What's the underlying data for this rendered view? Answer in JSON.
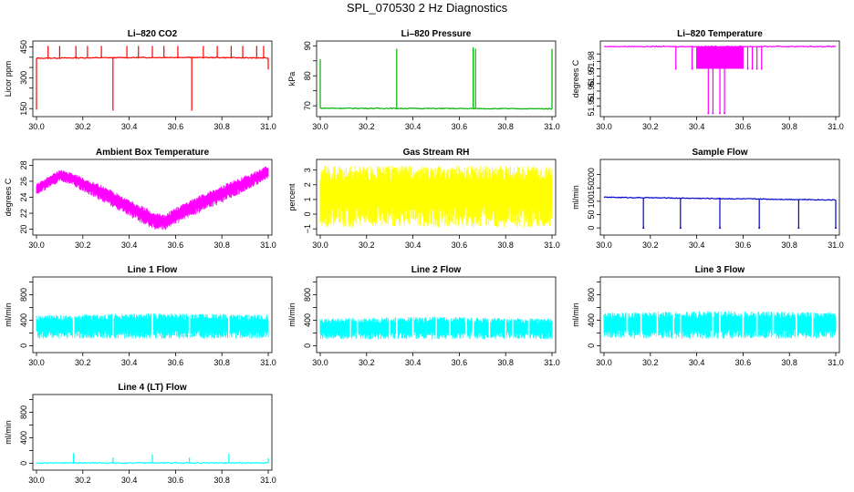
{
  "page_title": "SPL_070530  2 Hz Diagnostics",
  "chart_data": [
    {
      "type": "line",
      "title": "Li–820 CO2",
      "xlabel": "",
      "ylabel": "Licor ppm",
      "xlim": [
        30.0,
        31.0
      ],
      "ylim": [
        120,
        470
      ],
      "xticks": [
        30.0,
        30.2,
        30.4,
        30.6,
        30.8,
        31.0
      ],
      "xtick_labels": [
        "30.0",
        "30.2",
        "30.4",
        "30.6",
        "30.8",
        "31.0"
      ],
      "yticks": [
        150,
        300,
        450
      ],
      "ytick_labels": [
        "150",
        "300",
        "450"
      ],
      "ytick_minor": [
        200,
        250,
        350,
        400
      ],
      "color": "#ff0000",
      "series": [
        {
          "baseline": [
            [
              30.0,
              395
            ],
            [
              30.2,
              397
            ],
            [
              30.4,
              398
            ],
            [
              30.6,
              399
            ],
            [
              30.8,
              398
            ],
            [
              31.0,
              396
            ]
          ],
          "spikes": [
            [
              30.0,
              145
            ],
            [
              30.05,
              455
            ],
            [
              30.1,
              455
            ],
            [
              30.17,
              455
            ],
            [
              30.22,
              455
            ],
            [
              30.28,
              455
            ],
            [
              30.33,
              140
            ],
            [
              30.39,
              455
            ],
            [
              30.44,
              455
            ],
            [
              30.5,
              455
            ],
            [
              30.55,
              455
            ],
            [
              30.61,
              455
            ],
            [
              30.67,
              140
            ],
            [
              30.72,
              455
            ],
            [
              30.78,
              455
            ],
            [
              30.84,
              455
            ],
            [
              30.89,
              455
            ],
            [
              30.95,
              455
            ],
            [
              30.98,
              455
            ],
            [
              31.0,
              340
            ]
          ]
        }
      ]
    },
    {
      "type": "line",
      "title": "Li–820 Pressure",
      "xlabel": "",
      "ylabel": "kPa",
      "xlim": [
        30.0,
        31.0
      ],
      "ylim": [
        67,
        91
      ],
      "xticks": [
        30.0,
        30.2,
        30.4,
        30.6,
        30.8,
        31.0
      ],
      "xtick_labels": [
        "30.0",
        "30.2",
        "30.4",
        "30.6",
        "30.8",
        "31.0"
      ],
      "yticks": [
        70,
        80,
        90
      ],
      "ytick_labels": [
        "70",
        "80",
        "90"
      ],
      "ytick_minor": [
        75,
        85
      ],
      "color": "#00b000",
      "series": [
        {
          "baseline": [
            [
              30.0,
              69.2
            ],
            [
              31.0,
              69.0
            ]
          ],
          "spikes": [
            [
              30.0,
              85.5
            ],
            [
              30.33,
              89
            ],
            [
              30.66,
              89.5
            ],
            [
              30.67,
              89
            ],
            [
              31.0,
              89
            ]
          ]
        }
      ]
    },
    {
      "type": "line",
      "title": "Li–820 Temperature",
      "xlabel": "",
      "ylabel": "degrees C",
      "xlim": [
        30.0,
        31.0
      ],
      "ylim": [
        51.944,
        51.9925
      ],
      "xticks": [
        30.0,
        30.2,
        30.4,
        30.6,
        30.8,
        31.0
      ],
      "xtick_labels": [
        "30.0",
        "30.2",
        "30.4",
        "30.6",
        "30.8",
        "31.0"
      ],
      "yticks": [
        51.95,
        51.96,
        51.97,
        51.98
      ],
      "ytick_labels": [
        "51.95",
        "51.96",
        "51.97",
        "51.98"
      ],
      "ytick_minor": [
        51.955,
        51.965,
        51.975,
        51.985
      ],
      "color": "#ff00ff",
      "series": [
        {
          "baseline": [
            [
              30.0,
              51.99
            ],
            [
              31.0,
              51.99
            ]
          ],
          "dense_band": [
            [
              30.4,
              30.6,
              51.975,
              51.99
            ]
          ],
          "spikes_down": [
            [
              30.31,
              51.975
            ],
            [
              30.38,
              51.975
            ],
            [
              30.45,
              51.945
            ],
            [
              30.47,
              51.945
            ],
            [
              30.5,
              51.945
            ],
            [
              30.52,
              51.945
            ],
            [
              30.62,
              51.975
            ],
            [
              30.64,
              51.975
            ],
            [
              30.66,
              51.975
            ],
            [
              30.68,
              51.975
            ]
          ]
        }
      ]
    },
    {
      "type": "line",
      "title": "Ambient Box Temperature",
      "xlabel": "",
      "ylabel": "degrees C",
      "xlim": [
        30.0,
        31.0
      ],
      "ylim": [
        19.5,
        28.5
      ],
      "xticks": [
        30.0,
        30.2,
        30.4,
        30.6,
        30.8,
        31.0
      ],
      "xtick_labels": [
        "30.0",
        "30.2",
        "30.4",
        "30.6",
        "30.8",
        "31.0"
      ],
      "yticks": [
        20,
        22,
        24,
        26,
        28
      ],
      "ytick_labels": [
        "20",
        "22",
        "24",
        "26",
        "28"
      ],
      "color": "#ff00ff",
      "series": [
        {
          "lower": [
            [
              30.0,
              24.3
            ],
            [
              30.05,
              25.0
            ],
            [
              30.1,
              25.9
            ],
            [
              30.15,
              25.6
            ],
            [
              30.2,
              24.7
            ],
            [
              30.3,
              23.2
            ],
            [
              30.4,
              21.6
            ],
            [
              30.5,
              20.0
            ],
            [
              30.55,
              19.8
            ],
            [
              30.6,
              20.6
            ],
            [
              30.7,
              22.0
            ],
            [
              30.8,
              23.3
            ],
            [
              30.9,
              24.7
            ],
            [
              31.0,
              26.3
            ]
          ],
          "upper": [
            [
              30.0,
              25.7
            ],
            [
              30.05,
              26.6
            ],
            [
              30.1,
              27.5
            ],
            [
              30.15,
              27.1
            ],
            [
              30.2,
              26.5
            ],
            [
              30.3,
              25.3
            ],
            [
              30.4,
              23.7
            ],
            [
              30.5,
              22.3
            ],
            [
              30.55,
              21.8
            ],
            [
              30.6,
              22.7
            ],
            [
              30.7,
              24.2
            ],
            [
              30.8,
              25.5
            ],
            [
              30.9,
              26.7
            ],
            [
              31.0,
              28.0
            ]
          ]
        }
      ]
    },
    {
      "type": "line",
      "title": "Gas Stream RH",
      "xlabel": "",
      "ylabel": "percent",
      "xlim": [
        30.0,
        31.0
      ],
      "ylim": [
        -1.3,
        3.6
      ],
      "xticks": [
        30.0,
        30.2,
        30.4,
        30.6,
        30.8,
        31.0
      ],
      "xtick_labels": [
        "30.0",
        "30.2",
        "30.4",
        "30.6",
        "30.8",
        "31.0"
      ],
      "yticks": [
        -1,
        0,
        1,
        2,
        3
      ],
      "ytick_labels": [
        "−1",
        "0",
        "1",
        "2",
        "3"
      ],
      "color": "#ffff00",
      "series": [
        {
          "lower": [
            [
              30.0,
              -0.9
            ],
            [
              31.0,
              -0.9
            ]
          ],
          "upper": [
            [
              30.0,
              3.3
            ],
            [
              31.0,
              3.3
            ]
          ]
        }
      ]
    },
    {
      "type": "line",
      "title": "Sample Flow",
      "xlabel": "",
      "ylabel": "ml/min",
      "xlim": [
        30.0,
        31.0
      ],
      "ylim": [
        -20,
        250
      ],
      "xticks": [
        30.0,
        30.2,
        30.4,
        30.6,
        30.8,
        31.0
      ],
      "xtick_labels": [
        "30.0",
        "30.2",
        "30.4",
        "30.6",
        "30.8",
        "31.0"
      ],
      "yticks": [
        0,
        50,
        100,
        150,
        200
      ],
      "ytick_labels": [
        "0",
        "50",
        "100",
        "150",
        "200"
      ],
      "color": "#0000cc",
      "series": [
        {
          "baseline": [
            [
              30.0,
              115
            ],
            [
              31.0,
              105
            ]
          ],
          "spikes_down": [
            [
              30.17,
              0
            ],
            [
              30.33,
              0
            ],
            [
              30.5,
              0
            ],
            [
              30.67,
              0
            ],
            [
              30.84,
              0
            ],
            [
              31.0,
              0
            ]
          ]
        }
      ]
    },
    {
      "type": "area",
      "title": "Line 1 Flow",
      "xlabel": "",
      "ylabel": "ml/min",
      "xlim": [
        30.0,
        31.0
      ],
      "ylim": [
        -80,
        1050
      ],
      "xticks": [
        30.0,
        30.2,
        30.4,
        30.6,
        30.8,
        31.0
      ],
      "xtick_labels": [
        "30.0",
        "30.2",
        "30.4",
        "30.6",
        "30.8",
        "31.0"
      ],
      "yticks": [
        0,
        400,
        800
      ],
      "ytick_labels": [
        "0",
        "400",
        "800"
      ],
      "ytick_minor": [
        200,
        600,
        1000
      ],
      "color": "#00ffff",
      "series": [
        {
          "lower": [
            [
              30.0,
              110
            ],
            [
              31.0,
              110
            ]
          ],
          "upper": [
            [
              30.0,
              480
            ],
            [
              30.5,
              510
            ],
            [
              31.0,
              490
            ]
          ],
          "gaps": [
            30.16,
            30.33,
            30.5,
            30.66,
            30.83
          ]
        }
      ]
    },
    {
      "type": "area",
      "title": "Line 2 Flow",
      "xlabel": "",
      "ylabel": "ml/min",
      "xlim": [
        30.0,
        31.0
      ],
      "ylim": [
        -80,
        1050
      ],
      "xticks": [
        30.0,
        30.2,
        30.4,
        30.6,
        30.8,
        31.0
      ],
      "xtick_labels": [
        "30.0",
        "30.2",
        "30.4",
        "30.6",
        "30.8",
        "31.0"
      ],
      "yticks": [
        0,
        400,
        800
      ],
      "ytick_labels": [
        "0",
        "400",
        "800"
      ],
      "ytick_minor": [
        200,
        600,
        1000
      ],
      "color": "#00ffff",
      "series": [
        {
          "lower": [
            [
              30.0,
              100
            ],
            [
              31.0,
              100
            ]
          ],
          "upper": [
            [
              30.0,
              430
            ],
            [
              30.5,
              455
            ],
            [
              31.0,
              425
            ]
          ],
          "gaps": [
            30.13,
            30.16,
            30.3,
            30.33,
            30.4,
            30.5,
            30.56,
            30.63,
            30.66,
            30.73,
            30.8,
            30.83,
            30.9
          ]
        }
      ]
    },
    {
      "type": "area",
      "title": "Line 3 Flow",
      "xlabel": "",
      "ylabel": "ml/min",
      "xlim": [
        30.0,
        31.0
      ],
      "ylim": [
        -80,
        1050
      ],
      "xticks": [
        30.0,
        30.2,
        30.4,
        30.6,
        30.8,
        31.0
      ],
      "xtick_labels": [
        "30.0",
        "30.2",
        "30.4",
        "30.6",
        "30.8",
        "31.0"
      ],
      "yticks": [
        0,
        400,
        800
      ],
      "ytick_labels": [
        "0",
        "400",
        "800"
      ],
      "ytick_minor": [
        200,
        600,
        1000
      ],
      "color": "#00ffff",
      "series": [
        {
          "lower": [
            [
              30.0,
              110
            ],
            [
              31.0,
              110
            ]
          ],
          "upper": [
            [
              30.0,
              520
            ],
            [
              30.5,
              545
            ],
            [
              31.0,
              520
            ]
          ],
          "gaps": [
            30.1,
            30.16,
            30.23,
            30.3,
            30.33,
            30.47,
            30.5,
            30.6,
            30.66,
            30.73,
            30.83,
            30.9
          ]
        }
      ]
    },
    {
      "type": "line",
      "title": "Line 4 (LT) Flow",
      "xlabel": "",
      "ylabel": "ml/min",
      "xlim": [
        30.0,
        31.0
      ],
      "ylim": [
        -80,
        1050
      ],
      "xticks": [
        30.0,
        30.2,
        30.4,
        30.6,
        30.8,
        31.0
      ],
      "xtick_labels": [
        "30.0",
        "30.2",
        "30.4",
        "30.6",
        "30.8",
        "31.0"
      ],
      "yticks": [
        0,
        400,
        800
      ],
      "ytick_labels": [
        "0",
        "400",
        "800"
      ],
      "ytick_minor": [
        200,
        600,
        1000
      ],
      "color": "#00ffff",
      "series": [
        {
          "baseline": [
            [
              30.0,
              5
            ],
            [
              31.0,
              5
            ]
          ],
          "spikes": [
            [
              30.16,
              160
            ],
            [
              30.33,
              90
            ],
            [
              30.5,
              140
            ],
            [
              30.66,
              90
            ],
            [
              30.83,
              150
            ],
            [
              31.0,
              80
            ]
          ]
        }
      ]
    }
  ]
}
